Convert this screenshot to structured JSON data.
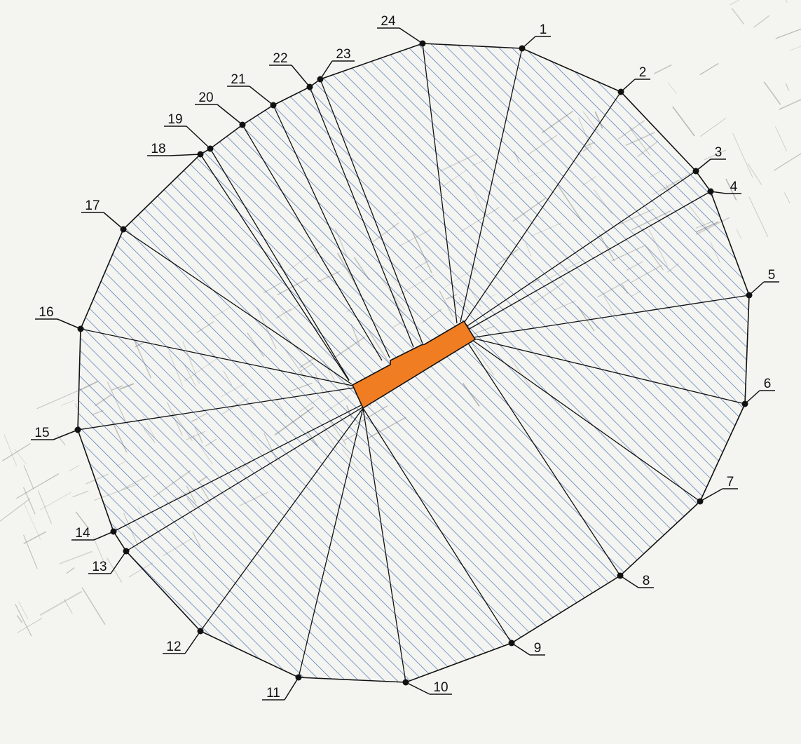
{
  "diagram": {
    "kind": "radial zone plan with numbered boundary points",
    "hatch_color": "#3f6db3",
    "boundary_color": "#111111",
    "center_block_color": "#f07d22",
    "basemap_color": "#9a9a96",
    "points": [
      {
        "id": 1,
        "label": "1"
      },
      {
        "id": 2,
        "label": "2"
      },
      {
        "id": 3,
        "label": "3"
      },
      {
        "id": 4,
        "label": "4"
      },
      {
        "id": 5,
        "label": "5"
      },
      {
        "id": 6,
        "label": "6"
      },
      {
        "id": 7,
        "label": "7"
      },
      {
        "id": 8,
        "label": "8"
      },
      {
        "id": 9,
        "label": "9"
      },
      {
        "id": 10,
        "label": "10"
      },
      {
        "id": 11,
        "label": "11"
      },
      {
        "id": 12,
        "label": "12"
      },
      {
        "id": 13,
        "label": "13"
      },
      {
        "id": 14,
        "label": "14"
      },
      {
        "id": 15,
        "label": "15"
      },
      {
        "id": 16,
        "label": "16"
      },
      {
        "id": 17,
        "label": "17"
      },
      {
        "id": 18,
        "label": "18"
      },
      {
        "id": 19,
        "label": "19"
      },
      {
        "id": 20,
        "label": "20"
      },
      {
        "id": 21,
        "label": "21"
      },
      {
        "id": 22,
        "label": "22"
      },
      {
        "id": 23,
        "label": "23"
      },
      {
        "id": 24,
        "label": "24"
      }
    ]
  }
}
